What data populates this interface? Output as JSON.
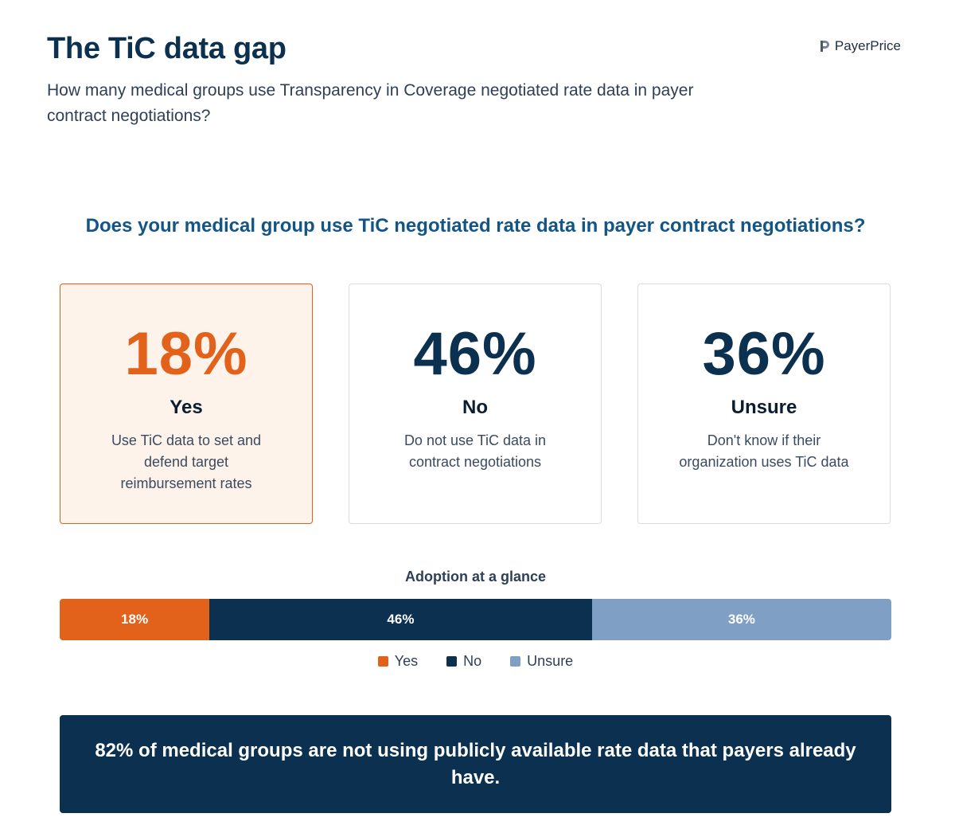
{
  "header": {
    "title": "The TiC data gap",
    "subtitle": "How many medical groups use Transparency in Coverage negotiated rate data in payer contract negotiations?",
    "brand": "PayerPrice",
    "brand_icon": "payerprice-logo-icon"
  },
  "colors": {
    "yes": "#e2621b",
    "no": "#0b3050",
    "unsure": "#7f9fc5",
    "accent_text": "#135584"
  },
  "cards": [
    {
      "value": "18%",
      "label": "Yes",
      "description": "Use TiC data to set and defend target reimbursement rates"
    },
    {
      "value": "46%",
      "label": "No",
      "description": "Do not use TiC data in contract negotiations"
    },
    {
      "value": "36%",
      "label": "Unsure",
      "description": "Don't know if their organization uses TiC data"
    }
  ],
  "chart_data": {
    "type": "bar",
    "orientation": "horizontal-stacked",
    "title": "Adoption at a glance",
    "question": "Does your medical group use TiC negotiated rate data in payer contract negotiations?",
    "categories": [
      "Yes",
      "No",
      "Unsure"
    ],
    "values": [
      18,
      46,
      36
    ],
    "value_labels": [
      "18%",
      "46%",
      "36%"
    ],
    "unit": "%",
    "legend": [
      "Yes",
      "No",
      "Unsure"
    ],
    "legend_position": "bottom-center",
    "xlim": [
      0,
      100
    ]
  },
  "callout": {
    "text": "82% of medical groups are not using publicly available rate data that payers already have."
  }
}
